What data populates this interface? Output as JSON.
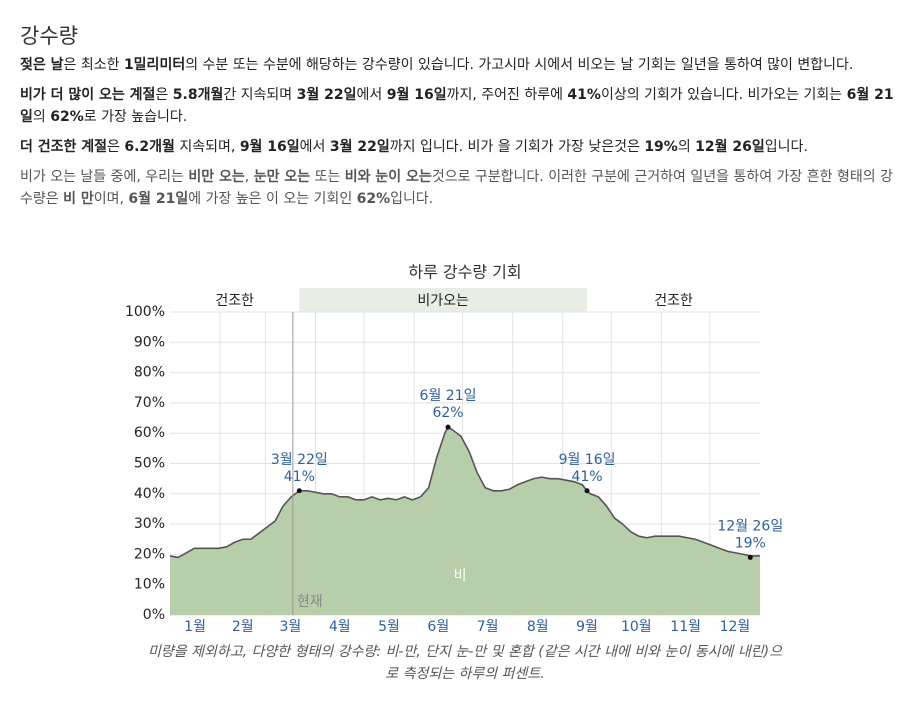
{
  "header": {
    "title": "강수량"
  },
  "paragraphs": [
    {
      "muted": false,
      "segments": [
        {
          "text": "젖은 날",
          "bold": true
        },
        {
          "text": "은 최소한 ",
          "bold": false
        },
        {
          "text": "1밀리미터",
          "bold": true
        },
        {
          "text": "의 수분 또는 수분에 해당하는 강수량이 있습니다. 가고시마 시에서 비오는 날 기회는 일년을 통하여 많이 변합니다.",
          "bold": false
        }
      ]
    },
    {
      "muted": false,
      "segments": [
        {
          "text": "비가 더 많이 오는 계절",
          "bold": true
        },
        {
          "text": "은 ",
          "bold": false
        },
        {
          "text": "5.8개월",
          "bold": true
        },
        {
          "text": "간 지속되며 ",
          "bold": false
        },
        {
          "text": "3월 22일",
          "bold": true
        },
        {
          "text": "에서 ",
          "bold": false
        },
        {
          "text": "9월 16일",
          "bold": true
        },
        {
          "text": "까지, 주어진 하루에 ",
          "bold": false
        },
        {
          "text": "41%",
          "bold": true
        },
        {
          "text": "이상의 기회가 있습니다. 비가오는 기회는 ",
          "bold": false
        },
        {
          "text": "6월 21일",
          "bold": true
        },
        {
          "text": "의 ",
          "bold": false
        },
        {
          "text": "62%",
          "bold": true
        },
        {
          "text": "로 가장 높습니다.",
          "bold": false
        }
      ]
    },
    {
      "muted": false,
      "segments": [
        {
          "text": "더 건조한 계절",
          "bold": true
        },
        {
          "text": "은 ",
          "bold": false
        },
        {
          "text": "6.2개월",
          "bold": true
        },
        {
          "text": " 지속되며, ",
          "bold": false
        },
        {
          "text": "9월 16일",
          "bold": true
        },
        {
          "text": "에서 ",
          "bold": false
        },
        {
          "text": "3월 22일",
          "bold": true
        },
        {
          "text": "까지 입니다. 비가 을 기회가 가장 낮은것은 ",
          "bold": false
        },
        {
          "text": "19%",
          "bold": true
        },
        {
          "text": "의 ",
          "bold": false
        },
        {
          "text": "12월 26일",
          "bold": true
        },
        {
          "text": "입니다.",
          "bold": false
        }
      ]
    },
    {
      "muted": true,
      "segments": [
        {
          "text": "비가 오는 날들 중에, 우리는 ",
          "bold": false
        },
        {
          "text": "비만 오는",
          "bold": true
        },
        {
          "text": ", ",
          "bold": false
        },
        {
          "text": "눈만 오는",
          "bold": true
        },
        {
          "text": " 또는 ",
          "bold": false
        },
        {
          "text": "비와 눈이 오는",
          "bold": true
        },
        {
          "text": "것으로 구분합니다. 이러한 구분에 근거하여 일년을 통하여 가장 흔한 형태의 강수량은 ",
          "bold": false
        },
        {
          "text": "비 만",
          "bold": true
        },
        {
          "text": "이며, ",
          "bold": false
        },
        {
          "text": "6월 21일",
          "bold": true
        },
        {
          "text": "에 가장 높은 이 오는 기회인 ",
          "bold": false
        },
        {
          "text": "62%",
          "bold": true
        },
        {
          "text": "입니다.",
          "bold": false
        }
      ]
    }
  ],
  "chart_data": {
    "type": "area",
    "title": "하루 강수량 기회",
    "caption": "미량을 제외하고, 다양한 형태의 강수량: 비-만, 단지 눈-만 및 혼합 (같은 시간 내에 비와 눈이 동시에 내린)으로 측정되는 하루의 퍼센트.",
    "x": [
      0,
      5,
      10,
      15,
      20,
      25,
      30,
      35,
      40,
      45,
      50,
      55,
      60,
      65,
      70,
      75,
      80,
      85,
      90,
      95,
      100,
      105,
      110,
      115,
      120,
      125,
      130,
      135,
      140,
      145,
      150,
      155,
      160,
      165,
      170,
      172,
      175,
      180,
      185,
      190,
      195,
      200,
      205,
      210,
      215,
      220,
      225,
      230,
      235,
      240,
      245,
      250,
      255,
      258,
      260,
      265,
      270,
      275,
      280,
      285,
      290,
      295,
      300,
      305,
      310,
      315,
      320,
      325,
      330,
      335,
      340,
      345,
      350,
      355,
      359,
      365
    ],
    "series": [
      {
        "name": "비",
        "color": "#b3cba7",
        "line_color": "#555555",
        "values": [
          19.5,
          19,
          20.5,
          22,
          22,
          22,
          22,
          22.5,
          24,
          25,
          25,
          27,
          29,
          31,
          36,
          39,
          41,
          41,
          40.5,
          40,
          40,
          39,
          39,
          38,
          38,
          39,
          38,
          38.5,
          38,
          39,
          38,
          39,
          42,
          52,
          60,
          62,
          61,
          59,
          54,
          47,
          42,
          41,
          41,
          41.5,
          43,
          44,
          45,
          45.5,
          45,
          45,
          44.5,
          44,
          43,
          41,
          40,
          39,
          36,
          32,
          30,
          27.5,
          26,
          25.5,
          26,
          26,
          26,
          26,
          25.5,
          25,
          24,
          23,
          22,
          21,
          20.5,
          20,
          19.5,
          19.5
        ]
      }
    ],
    "xlim": [
      0,
      365
    ],
    "xticks": [
      {
        "value": 15.5,
        "label": "1월"
      },
      {
        "value": 45,
        "label": "2월"
      },
      {
        "value": 74.5,
        "label": "3월"
      },
      {
        "value": 105,
        "label": "4월"
      },
      {
        "value": 135.5,
        "label": "5월"
      },
      {
        "value": 166,
        "label": "6월"
      },
      {
        "value": 196.5,
        "label": "7월"
      },
      {
        "value": 227.5,
        "label": "8월"
      },
      {
        "value": 258,
        "label": "9월"
      },
      {
        "value": 288.5,
        "label": "10월"
      },
      {
        "value": 319,
        "label": "11월"
      },
      {
        "value": 349.5,
        "label": "12월"
      }
    ],
    "xgrid": [
      31,
      59,
      90,
      120,
      151,
      181,
      212,
      243,
      273,
      304,
      334
    ],
    "ylim": [
      0,
      100
    ],
    "yticks": [
      {
        "value": 0,
        "label": "0%"
      },
      {
        "value": 10,
        "label": "10%"
      },
      {
        "value": 20,
        "label": "20%"
      },
      {
        "value": 30,
        "label": "30%"
      },
      {
        "value": 40,
        "label": "40%"
      },
      {
        "value": 50,
        "label": "50%"
      },
      {
        "value": 60,
        "label": "60%"
      },
      {
        "value": 70,
        "label": "70%"
      },
      {
        "value": 80,
        "label": "80%"
      },
      {
        "value": 90,
        "label": "90%"
      },
      {
        "value": 100,
        "label": "100%"
      }
    ],
    "grid": true,
    "bands": [
      {
        "from": 0,
        "to": 80,
        "label": "건조한",
        "color": "#ffffff"
      },
      {
        "from": 80,
        "to": 258,
        "label": "비가오는",
        "color": "#e8eee5"
      },
      {
        "from": 258,
        "to": 365,
        "label": "건조한",
        "color": "#ffffff"
      }
    ],
    "now_marker": {
      "x": 76,
      "label": "현재"
    },
    "annotations": [
      {
        "x": 80,
        "value": 41,
        "date": "3월 22일",
        "label": "41%"
      },
      {
        "x": 172,
        "value": 62,
        "date": "6월 21일",
        "label": "62%"
      },
      {
        "x": 258,
        "value": 41,
        "date": "9월 16일",
        "label": "41%"
      },
      {
        "x": 359,
        "value": 19,
        "date": "12월 26일",
        "label": "19%"
      }
    ]
  }
}
